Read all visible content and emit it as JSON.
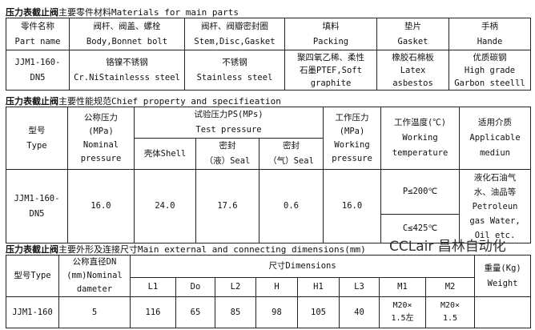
{
  "materials": {
    "title_bold": "压力表截止阀",
    "title_rest": "主要零件材料Materials for main parts",
    "headers": [
      [
        "零件名称",
        "Part name"
      ],
      [
        "阀杆、阀盖、螺栓",
        "Body,Bonnet bolt"
      ],
      [
        "阀杆、阀瓣密封圈",
        "Stem,Disc,Gasket"
      ],
      [
        "填料",
        "Packing"
      ],
      [
        "垫片",
        "Gasket"
      ],
      [
        "手柄",
        "Hande"
      ]
    ],
    "row": [
      [
        "JJM1-160-",
        "DN5"
      ],
      [
        "铬镍不锈钢",
        "Cr.NiStainlesss steel"
      ],
      [
        "不锈钢",
        "Stainless steel"
      ],
      [
        "聚四氧乙稀、柔性",
        "石墨PTEF,Soft",
        "graphite"
      ],
      [
        "橡胶石棉板",
        "Latex",
        "asbestos"
      ],
      [
        "优质碳钢",
        "High grade",
        "Garbon steelll"
      ]
    ]
  },
  "spec": {
    "title_bold": "压力表截止阀",
    "title_rest": "主要性能规范Chief property and specifieation",
    "type": [
      "型号",
      "Type"
    ],
    "nominal": [
      "公称压力",
      "(MPa)",
      "Nominal",
      "pressure"
    ],
    "test": [
      "试验压力PS(MPs)",
      "Test pressure"
    ],
    "shell": "壳体Shell",
    "seal_liquid": [
      "密封",
      "（液）Seal"
    ],
    "seal_gas": [
      "密封",
      "（气）Seal"
    ],
    "working": [
      "工作压力",
      "(MPa)",
      "Working",
      "pressure"
    ],
    "temp": [
      "工作温度(℃)",
      "Working",
      "temperature"
    ],
    "medium": [
      "适用介质",
      "Applicable",
      "mediun"
    ],
    "row": {
      "type": [
        "JJM1-160-",
        "DN5"
      ],
      "nominal": "16.0",
      "shell": "24.0",
      "seal_liquid": "17.6",
      "seal_gas": "0.6",
      "working": "16.0",
      "temp1": "P≤200℃",
      "temp2": "C≤425℃",
      "medium": [
        "液化石油气",
        "水、油品等",
        "Petroleun",
        "gas Water,",
        "Oil etc."
      ]
    }
  },
  "dims": {
    "title_bold": "压力表截止阀",
    "title_rest": "主要外形及连接尺寸Main external and connecting dimensions(mm)",
    "type": "型号Type",
    "dn": [
      "公称直径DN",
      "(mm)Nominal",
      "dameter"
    ],
    "dimensions": "尺寸Dimensions",
    "cols": [
      "L1",
      "Do",
      "L2",
      "H",
      "H1",
      "L3",
      "M1",
      "M2"
    ],
    "weight": [
      "重量(Kg)",
      "Weight"
    ],
    "row": {
      "type": "JJM1-160",
      "dn": "5",
      "values": [
        "116",
        "65",
        "85",
        "98",
        "105",
        "40"
      ],
      "m1": [
        "M20×",
        "1.5左"
      ],
      "m2": [
        "M20×",
        "1.5"
      ],
      "weight": ""
    }
  },
  "watermark": "CCLair 昌林自动化"
}
